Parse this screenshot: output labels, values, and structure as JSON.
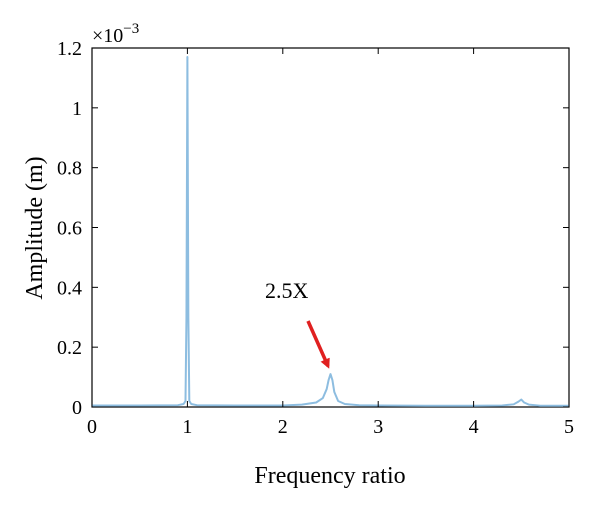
{
  "chart_data": {
    "type": "line",
    "title": "",
    "xlabel": "Frequency ratio",
    "ylabel": "Amplitude (m)",
    "y_multiplier_label": "×10",
    "y_multiplier_exp": "−3",
    "xlim": [
      0,
      5
    ],
    "ylim": [
      0,
      1.2
    ],
    "x_ticks": [
      0,
      1,
      2,
      3,
      4,
      5
    ],
    "x_tick_labels": [
      "0",
      "1",
      "2",
      "3",
      "4",
      "5"
    ],
    "y_ticks": [
      0,
      0.2,
      0.4,
      0.6,
      0.8,
      1.0,
      1.2
    ],
    "y_tick_labels": [
      "0",
      "0.2",
      "0.4",
      "0.6",
      "0.8",
      "1",
      "1.2"
    ],
    "grid": false,
    "series": [
      {
        "color": "#8dbde0",
        "x": [
          0,
          0.5,
          0.9,
          0.96,
          0.98,
          0.99,
          1.0,
          1.01,
          1.02,
          1.04,
          1.1,
          1.5,
          2.0,
          2.2,
          2.35,
          2.42,
          2.46,
          2.48,
          2.5,
          2.52,
          2.54,
          2.58,
          2.65,
          2.8,
          3.0,
          3.5,
          4.0,
          4.3,
          4.42,
          4.47,
          4.5,
          4.53,
          4.58,
          4.7,
          5.0
        ],
        "y": [
          0.005,
          0.005,
          0.006,
          0.01,
          0.02,
          0.3,
          1.17,
          0.3,
          0.02,
          0.01,
          0.006,
          0.005,
          0.005,
          0.008,
          0.015,
          0.03,
          0.06,
          0.09,
          0.11,
          0.09,
          0.05,
          0.02,
          0.01,
          0.006,
          0.005,
          0.004,
          0.004,
          0.005,
          0.009,
          0.018,
          0.025,
          0.015,
          0.008,
          0.004,
          0.004
        ]
      }
    ],
    "annotations": [
      {
        "text": "2.5X",
        "arrow_to": {
          "x": 2.5,
          "y": 0.11
        },
        "color": "#e02020"
      }
    ]
  }
}
